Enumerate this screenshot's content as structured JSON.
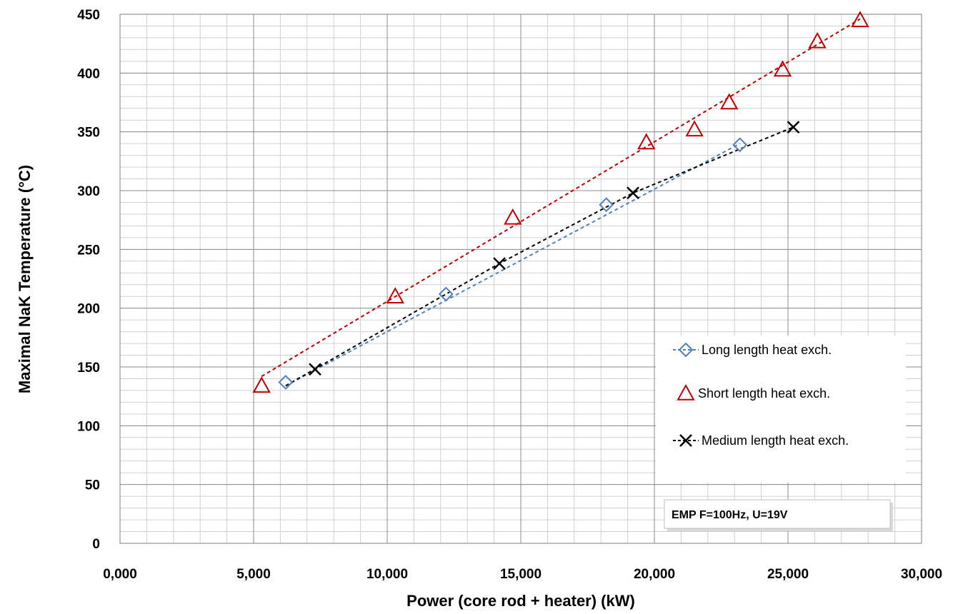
{
  "chart_data": {
    "type": "scatter",
    "title": "",
    "xlabel": "Power (core rod + heater) (kW)",
    "ylabel": "Maximal NaK Temperature (°C)",
    "xlim": [
      0,
      30000
    ],
    "ylim": [
      0,
      450
    ],
    "x_ticks": [
      0,
      5000,
      10000,
      15000,
      20000,
      25000,
      30000
    ],
    "x_tick_labels": [
      "0,000",
      "5,000",
      "10,000",
      "15,000",
      "20,000",
      "25,000",
      "30,000"
    ],
    "y_ticks": [
      0,
      50,
      100,
      150,
      200,
      250,
      300,
      350,
      400,
      450
    ],
    "y_tick_labels": [
      "0",
      "50",
      "100",
      "150",
      "200",
      "250",
      "300",
      "350",
      "400",
      "450"
    ],
    "grid": true,
    "legend_position": "right",
    "annotation": "EMP F=100Hz, U=19V",
    "series": [
      {
        "name": "Long length heat exch.",
        "marker": "diamond",
        "color": "#4f81bd",
        "x": [
          6200,
          12200,
          18200,
          23200
        ],
        "y": [
          137,
          212,
          288,
          339
        ],
        "trend": [
          [
            6200,
            134
          ],
          [
            23200,
            340
          ]
        ]
      },
      {
        "name": "Short length heat exch.",
        "marker": "triangle",
        "color": "#c00000",
        "x": [
          5300,
          10300,
          14700,
          19700,
          21500,
          22800,
          24800,
          26100,
          27700
        ],
        "y": [
          134,
          210,
          277,
          341,
          352,
          375,
          403,
          427,
          445
        ],
        "trend": [
          [
            5300,
            142
          ],
          [
            27700,
            446
          ]
        ]
      },
      {
        "name": "Medium length heat exch.",
        "marker": "x",
        "color": "#000000",
        "x": [
          7300,
          14200,
          19200,
          25200
        ],
        "y": [
          148,
          238,
          298,
          354
        ],
        "trend": [
          [
            6200,
            134
          ],
          [
            14200,
            238
          ],
          [
            19200,
            298
          ],
          [
            25200,
            354
          ]
        ]
      }
    ]
  }
}
